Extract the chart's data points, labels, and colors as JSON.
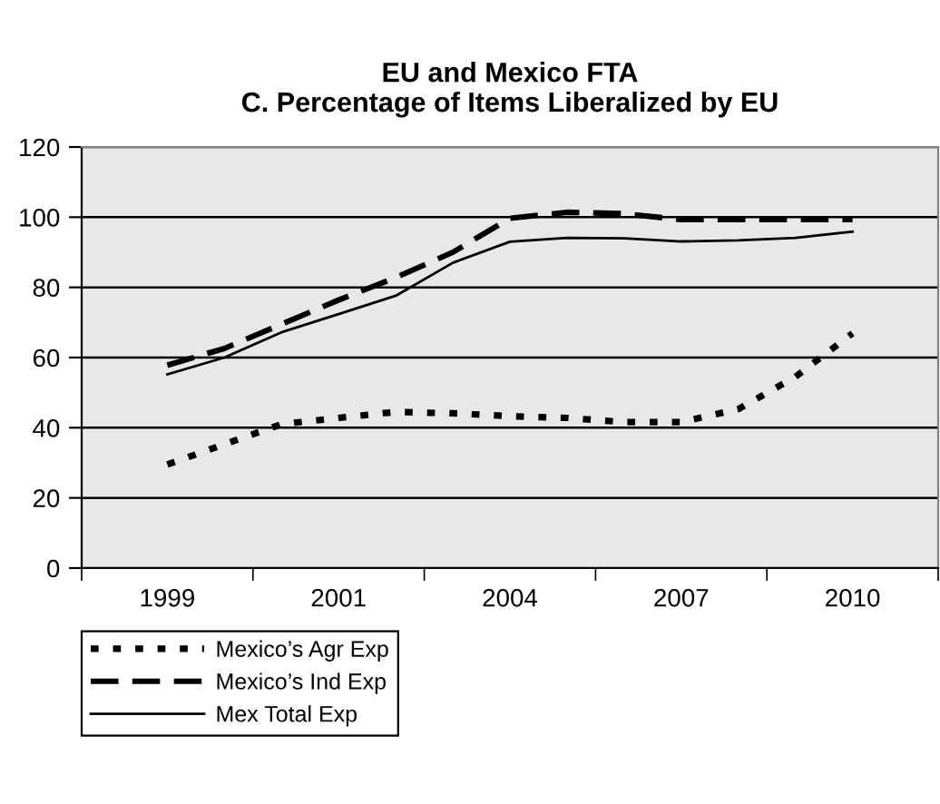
{
  "chart_data": {
    "type": "line",
    "title": "EU and Mexico FTA\nC. Percentage of Items Liberalized by EU",
    "categories": [
      "1999",
      null,
      null,
      "2001",
      null,
      null,
      "2004",
      null,
      null,
      "2007",
      null,
      null,
      "2010"
    ],
    "series": [
      {
        "name": "Mexico’s Agr Exp",
        "color": "#000000",
        "line_style": "dotted",
        "values": [
          29.5,
          35.3,
          41,
          42.8,
          44.5,
          44.1,
          43.3,
          42.8,
          41.6,
          41.6,
          45.3,
          54.5,
          66.9
        ]
      },
      {
        "name": "Mexico’s Ind Exp",
        "color": "#000000",
        "line_style": "dashed",
        "values": [
          57.8,
          62.6,
          69.5,
          76.4,
          82.8,
          90,
          99.7,
          101.4,
          101,
          99.3,
          99.3,
          99.3,
          99.3
        ]
      },
      {
        "name": "Mex Total Exp",
        "color": "#000000",
        "line_style": "solid",
        "values": [
          55.2,
          60,
          67.2,
          72.4,
          77.6,
          87,
          93,
          94.1,
          94,
          93.1,
          93.4,
          94.1,
          95.9
        ]
      }
    ],
    "ylim": [
      0,
      120
    ],
    "yticks": [
      0,
      20,
      40,
      60,
      80,
      100,
      120
    ],
    "grid": "y",
    "legend": "bottom left",
    "marker": "none"
  }
}
